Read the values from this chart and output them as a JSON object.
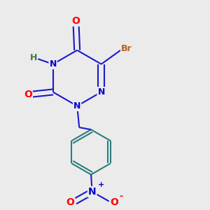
{
  "bg_color": "#ebebeb",
  "bond_color_triazine": "#1a1acc",
  "bond_color_benzene": "#2e7d7d",
  "bond_color_nitro": "#1a1acc",
  "bond_width": 1.5,
  "atom_colors": {
    "O": "#ff0000",
    "N": "#0000cc",
    "Br": "#b5651d",
    "H": "#3a7a3a",
    "N+": "#0000cc",
    "O-": "#ff0000"
  },
  "font_size": 9
}
